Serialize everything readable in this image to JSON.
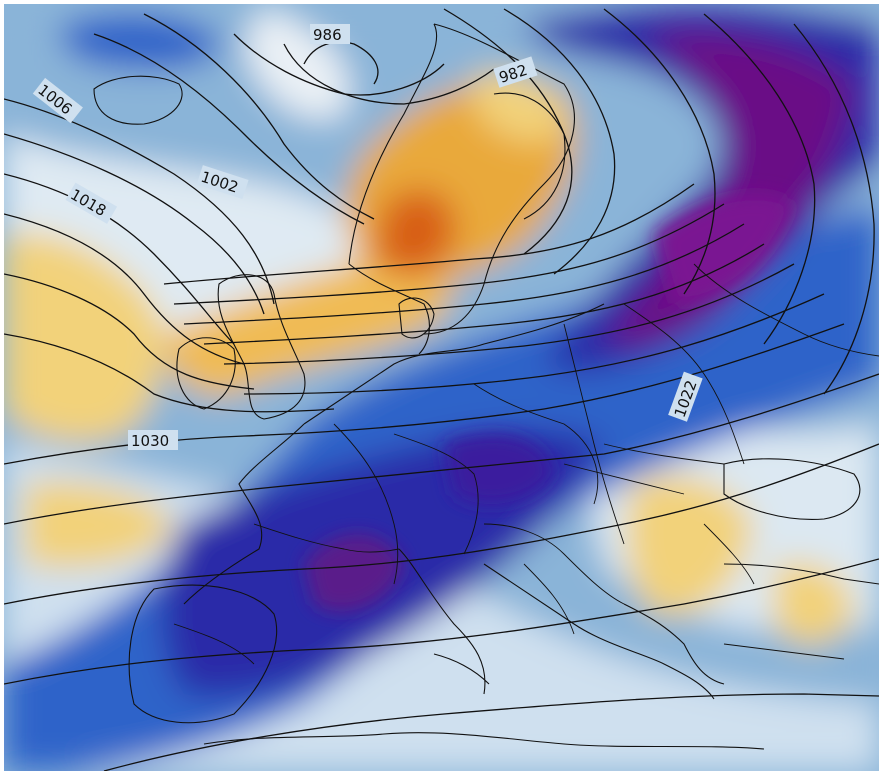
{
  "map": {
    "isobar_labels": [
      "986",
      "982",
      "1006",
      "1002",
      "1018",
      "1030",
      "1022"
    ]
  },
  "colors": {
    "anomaly_deep_negative": "#6a0f86",
    "anomaly_strong_negative": "#2a2aa8",
    "anomaly_negative": "#2f63c9",
    "anomaly_weak_negative": "#8ab4d8",
    "anomaly_neutral": "#eef3f7",
    "anomaly_weak_positive": "#f2d27a",
    "anomaly_positive": "#e9a93b",
    "anomaly_strong_positive": "#d85e18",
    "isobar_line": "#111111"
  }
}
